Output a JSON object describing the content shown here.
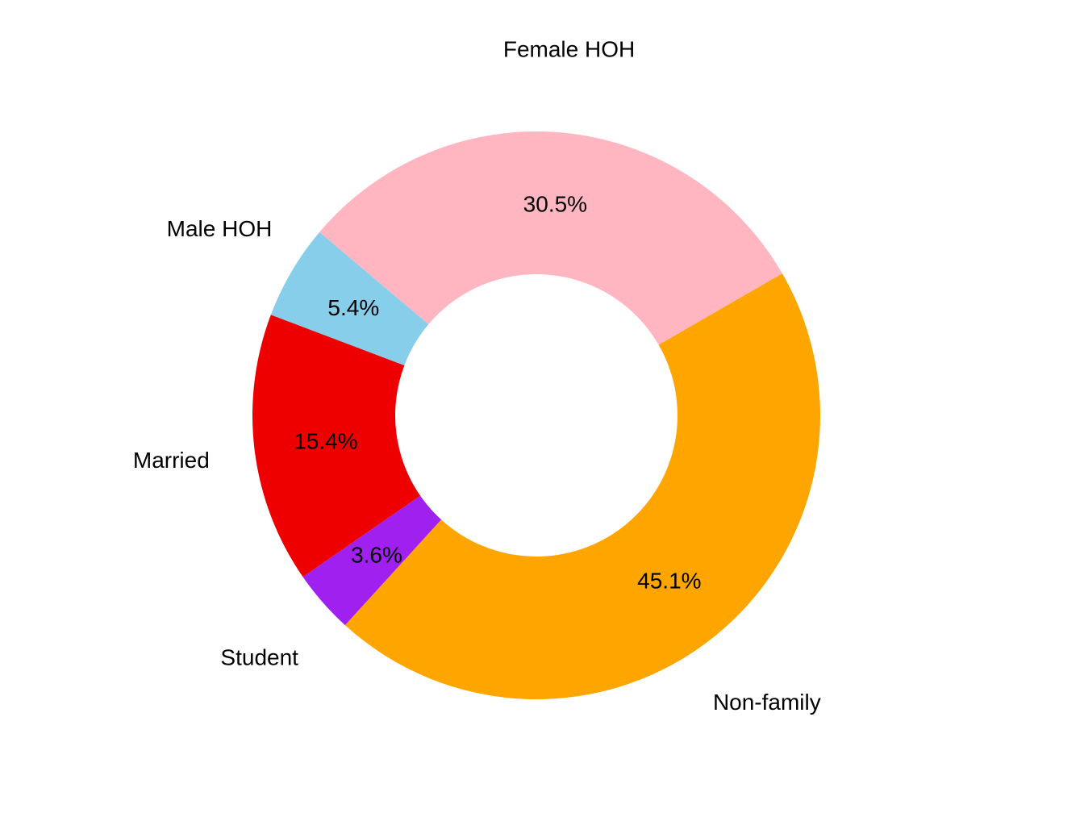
{
  "chart_data": {
    "type": "pie",
    "variant": "donut",
    "title": "",
    "slices": [
      {
        "label": "Non-family",
        "value": 45.1,
        "percent_label": "45.1%",
        "color": "#FFA500"
      },
      {
        "label": "Student",
        "value": 3.6,
        "percent_label": "3.6%",
        "color": "#A020F0"
      },
      {
        "label": "Married",
        "value": 15.4,
        "percent_label": "15.4%",
        "color": "#EE0000"
      },
      {
        "label": "Male HOH",
        "value": 5.4,
        "percent_label": "5.4%",
        "color": "#87CEEB"
      },
      {
        "label": "Female HOH",
        "value": 30.5,
        "percent_label": "30.5%",
        "color": "#FFB6C1"
      }
    ],
    "start_angle_deg": 30,
    "direction": "clockwise",
    "legend": "none"
  }
}
